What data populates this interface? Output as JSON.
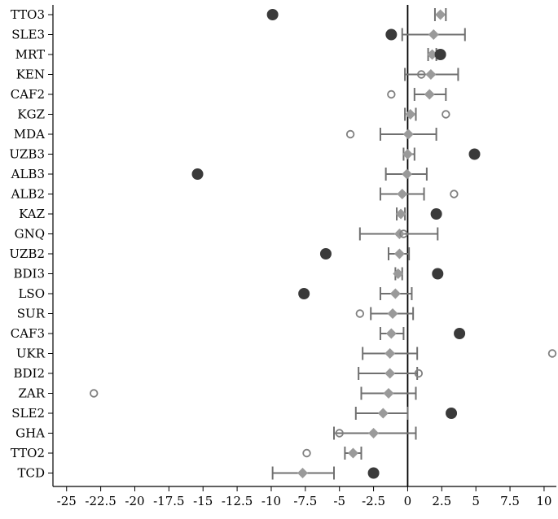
{
  "chart_data": {
    "type": "scatter",
    "title": "",
    "xlabel": "",
    "ylabel": "",
    "xlim": [
      -26,
      10.9
    ],
    "x_ticks": [
      "-25",
      "-22.5",
      "-20",
      "-17.5",
      "-15",
      "-12.5",
      "-10",
      "-7.5",
      "-5",
      "-2.5",
      "0",
      "2.5",
      "5",
      "7.5",
      "10"
    ],
    "reference_line_x": 0,
    "grid": false,
    "legend": "none",
    "colors": {
      "estimate_marker": "#9a9a9a",
      "error_bar": "#707070",
      "filled_circle": "#3a3a3a",
      "hollow_circle": "#808080",
      "reference_line": "#000000"
    },
    "categories": [
      "TTO3",
      "SLE3",
      "MRT",
      "KEN",
      "CAF2",
      "KGZ",
      "MDA",
      "UZB3",
      "ALB3",
      "ALB2",
      "KAZ",
      "GNQ",
      "UZB2",
      "BDI3",
      "LSO",
      "SUR",
      "CAF3",
      "UKR",
      "BDI2",
      "ZAR",
      "SLE2",
      "GHA",
      "TTO2",
      "TCD"
    ],
    "series": [
      {
        "marker": "diamond",
        "values": [
          2.4,
          1.9,
          1.8,
          1.7,
          1.6,
          0.2,
          0.05,
          0.0,
          -0.05,
          -0.4,
          -0.5,
          -0.6,
          -0.6,
          -0.7,
          -0.9,
          -1.1,
          -1.2,
          -1.3,
          -1.3,
          -1.4,
          -1.8,
          -2.5,
          -4.0,
          -7.7
        ],
        "ci_low": [
          2.0,
          -0.4,
          1.5,
          -0.2,
          0.5,
          -0.2,
          -2.0,
          -0.3,
          -1.6,
          -2.0,
          -0.8,
          -3.5,
          -1.4,
          -0.9,
          -2.0,
          -2.7,
          -2.0,
          -3.3,
          -3.6,
          -3.4,
          -3.8,
          -5.4,
          -4.6,
          -9.9
        ],
        "ci_high": [
          2.8,
          4.2,
          2.1,
          3.7,
          2.8,
          0.6,
          2.1,
          0.5,
          1.4,
          1.2,
          -0.2,
          2.2,
          0.1,
          -0.4,
          0.3,
          0.4,
          -0.3,
          0.7,
          0.7,
          0.6,
          0.0,
          0.6,
          -3.4,
          -5.4
        ]
      },
      {
        "marker": "filled-circle",
        "points": [
          {
            "category": "TTO3",
            "x": -9.9
          },
          {
            "category": "SLE3",
            "x": -1.2
          },
          {
            "category": "MRT",
            "x": 2.4
          },
          {
            "category": "UZB3",
            "x": 4.9
          },
          {
            "category": "ALB3",
            "x": -15.4
          },
          {
            "category": "KAZ",
            "x": 2.1
          },
          {
            "category": "UZB2",
            "x": -6.0
          },
          {
            "category": "BDI3",
            "x": 2.2
          },
          {
            "category": "LSO",
            "x": -7.6
          },
          {
            "category": "CAF3",
            "x": 3.8
          },
          {
            "category": "SLE2",
            "x": 3.2
          },
          {
            "category": "TCD",
            "x": -2.5
          }
        ]
      },
      {
        "marker": "hollow-circle",
        "points": [
          {
            "category": "KEN",
            "x": 1.0
          },
          {
            "category": "CAF2",
            "x": -1.2
          },
          {
            "category": "KGZ",
            "x": 2.8
          },
          {
            "category": "MDA",
            "x": -4.2
          },
          {
            "category": "ALB2",
            "x": 3.4
          },
          {
            "category": "GNQ",
            "x": -0.3
          },
          {
            "category": "SUR",
            "x": -3.5
          },
          {
            "category": "UKR",
            "x": 10.6
          },
          {
            "category": "BDI2",
            "x": 0.8
          },
          {
            "category": "ZAR",
            "x": -23.0
          },
          {
            "category": "GHA",
            "x": -5.0
          },
          {
            "category": "TTO2",
            "x": -7.4
          }
        ]
      }
    ]
  }
}
